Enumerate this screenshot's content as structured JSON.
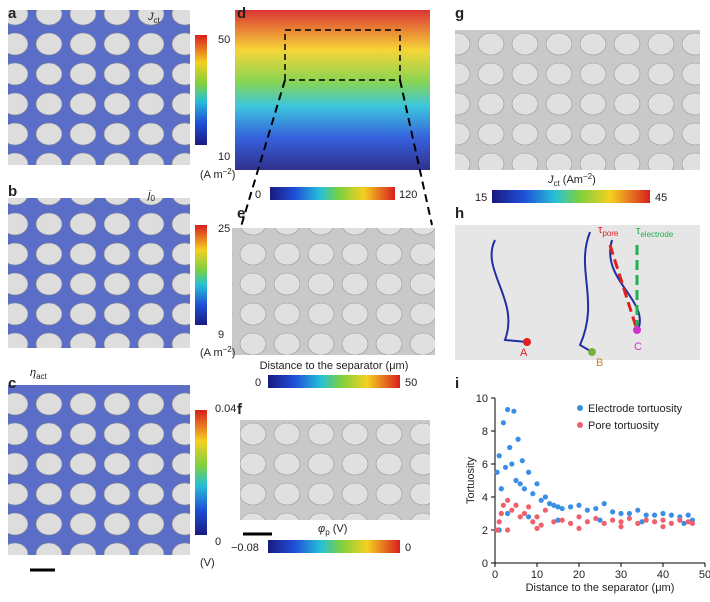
{
  "panels": {
    "a": {
      "label": "a",
      "symbol": "J",
      "sub": "ct",
      "cb_max": "50",
      "cb_min": "10",
      "unit": "(A m",
      "unit_sup": "−2",
      "unit_end": ")"
    },
    "b": {
      "label": "b",
      "symbol": "j",
      "sub": "0",
      "cb_max": "25",
      "cb_min": "9",
      "unit": "(A m",
      "unit_sup": "−2",
      "unit_end": ")"
    },
    "c": {
      "label": "c",
      "symbol": "η",
      "sub": "act",
      "cb_max": "0.04",
      "cb_min": "0",
      "unit": "(V)"
    },
    "d": {
      "label": "d",
      "cb_min": "0",
      "cb_max": "120"
    },
    "e": {
      "label": "e",
      "caption": "Distance to the separator (μm)",
      "cb_min": "0",
      "cb_max": "50"
    },
    "f": {
      "label": "f",
      "symbol": "φ",
      "sub": "p",
      "unit": " (V)",
      "cb_min": "−0.08",
      "cb_max": "0"
    },
    "g": {
      "label": "g",
      "symbol": "J",
      "sub": "ct",
      "unit": " (Am",
      "unit_sup": "−2",
      "unit_end": ")",
      "cb_min": "15",
      "cb_max": "45"
    },
    "h": {
      "label": "h",
      "tau_pore_sym": "τ",
      "tau_pore_sub": "pore",
      "tau_el_sym": "τ",
      "tau_el_sub": "electrode",
      "point_a": "A",
      "point_b": "B",
      "point_c": "C"
    },
    "i": {
      "label": "i"
    }
  },
  "chart_data": {
    "type": "scatter",
    "xlabel": "Distance to the separator (μm)",
    "ylabel": "Tortuosity",
    "xlim": [
      0,
      50
    ],
    "ylim": [
      0,
      10
    ],
    "xticks": [
      0,
      10,
      20,
      30,
      40,
      50
    ],
    "yticks": [
      0,
      2,
      4,
      6,
      8,
      10
    ],
    "legend": "upper right",
    "series": [
      {
        "name": "Electrode tortuosity",
        "color": "#3a8ee6",
        "x": [
          0.5,
          1,
          1.5,
          2,
          2.5,
          3,
          3.5,
          4,
          4.5,
          5,
          5.5,
          6,
          6.5,
          7,
          8,
          9,
          10,
          11,
          12,
          13,
          14,
          15,
          16,
          18,
          20,
          22,
          24,
          26,
          28,
          30,
          32,
          34,
          36,
          38,
          40,
          42,
          44,
          46,
          47,
          1,
          3,
          8,
          15,
          25,
          35,
          45
        ],
        "y": [
          5.5,
          6.5,
          4.5,
          8.5,
          5.8,
          9.3,
          7,
          6,
          9.2,
          5,
          7.5,
          4.8,
          6.2,
          4.5,
          5.5,
          4.2,
          4.8,
          3.8,
          4,
          3.6,
          3.5,
          3.4,
          3.3,
          3.4,
          3.5,
          3.2,
          3.3,
          3.6,
          3.1,
          3,
          3,
          3.2,
          2.9,
          2.9,
          3,
          2.9,
          2.8,
          2.9,
          2.6,
          2,
          3,
          2.8,
          2.6,
          2.6,
          2.5,
          2.4
        ]
      },
      {
        "name": "Pore tortuosity",
        "color": "#f0606a",
        "x": [
          0.5,
          1,
          1.5,
          2,
          3,
          4,
          5,
          6,
          7,
          8,
          9,
          10,
          11,
          12,
          14,
          16,
          18,
          20,
          22,
          24,
          26,
          28,
          30,
          32,
          34,
          36,
          38,
          40,
          42,
          44,
          46,
          47,
          3,
          10,
          20,
          30,
          40
        ],
        "y": [
          2,
          2.5,
          3,
          3.5,
          3.8,
          3.2,
          3.5,
          2.8,
          3,
          3.4,
          2.5,
          2.8,
          2.3,
          3.2,
          2.5,
          2.6,
          2.4,
          2.8,
          2.5,
          2.7,
          2.4,
          2.6,
          2.5,
          2.7,
          2.4,
          2.6,
          2.5,
          2.6,
          2.4,
          2.6,
          2.5,
          2.4,
          2,
          2.1,
          2.1,
          2.2,
          2.2
        ]
      }
    ]
  }
}
